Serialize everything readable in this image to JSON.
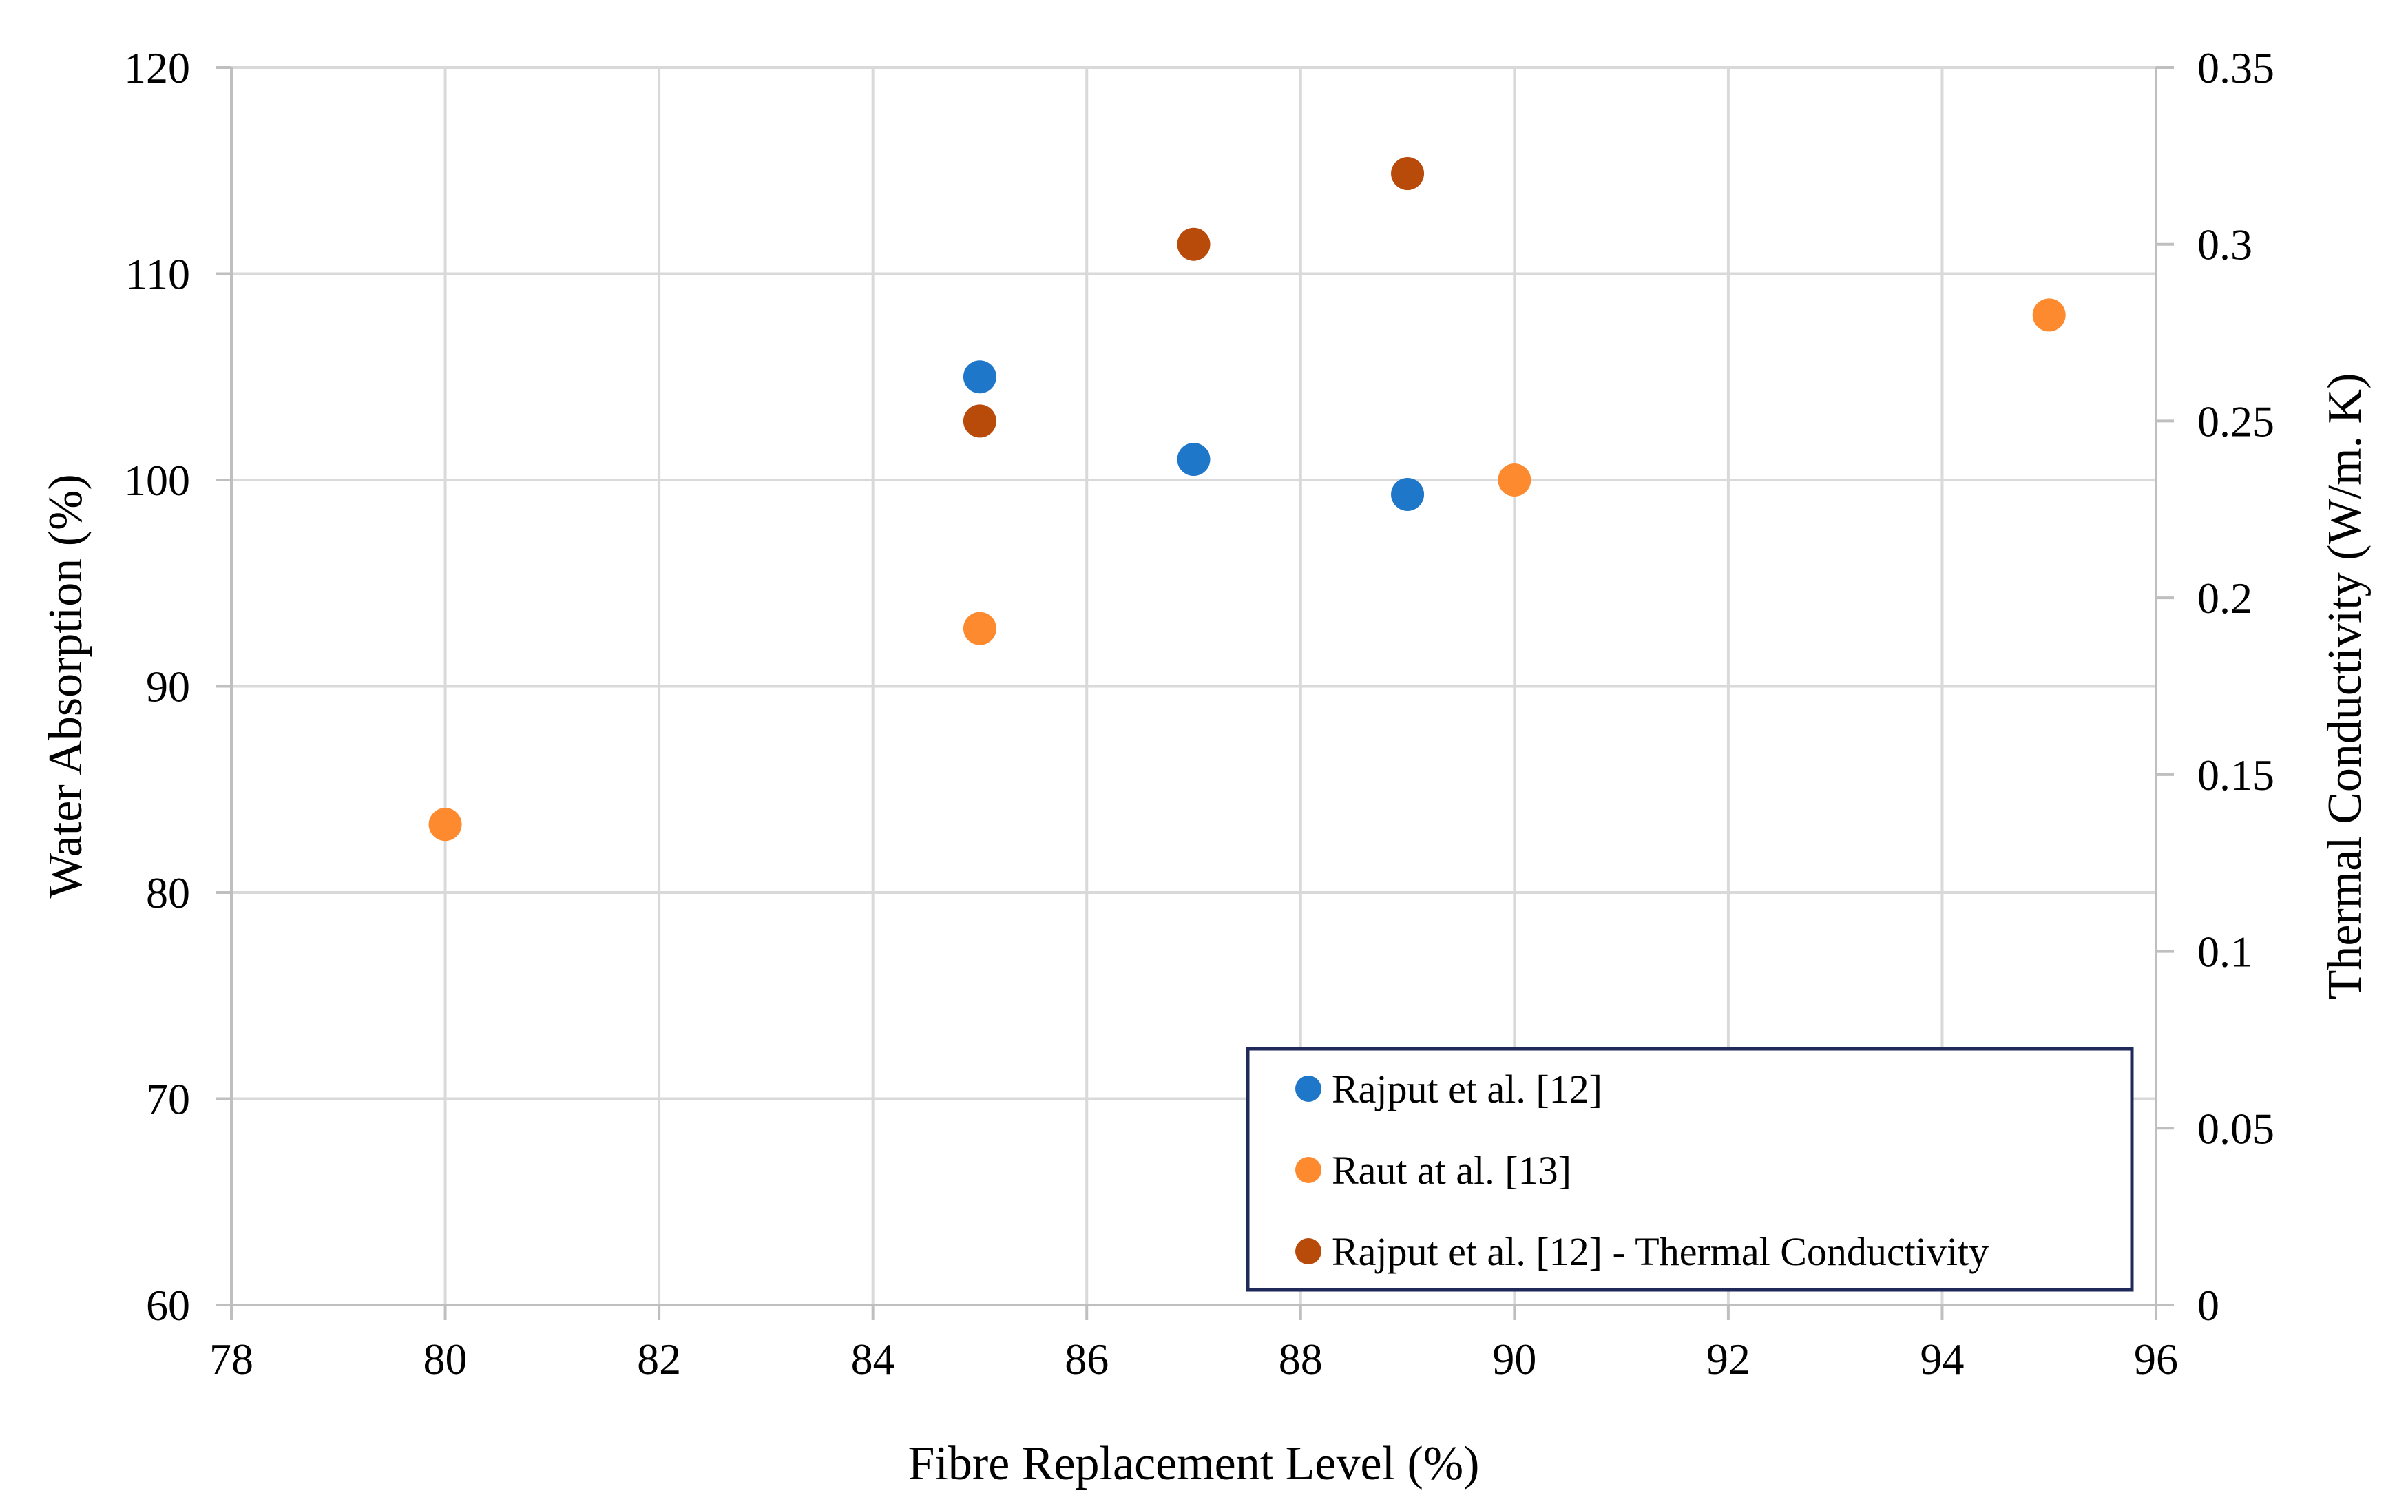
{
  "chart_data": {
    "type": "scatter",
    "x_axis": {
      "label": "Fibre Replacement Level (%)",
      "range": [
        78,
        96
      ],
      "ticks": [
        "78",
        "80",
        "82",
        "84",
        "86",
        "88",
        "90",
        "92",
        "94",
        "96"
      ],
      "gridlines": true
    },
    "y_axis_left": {
      "label": "Water Absorption (%)",
      "range": [
        60,
        120
      ],
      "ticks": [
        "60",
        "70",
        "80",
        "90",
        "100",
        "110",
        "120"
      ],
      "gridlines": true
    },
    "y_axis_right": {
      "label": "Thermal Conductivity (W/m. K)",
      "range": [
        0,
        0.35
      ],
      "ticks": [
        "0",
        "0.05",
        "0.1",
        "0.15",
        "0.2",
        "0.25",
        "0.3",
        "0.35"
      ]
    },
    "legend_position": "bottom-right",
    "series": [
      {
        "name": "Rajput et al. [12]",
        "axis": "left",
        "color": "#1f77c9",
        "points": [
          {
            "x": 85,
            "y": 105
          },
          {
            "x": 87,
            "y": 101
          },
          {
            "x": 89,
            "y": 99.3
          }
        ]
      },
      {
        "name": "Raut at al. [13]",
        "axis": "left",
        "color": "#fd8a2f",
        "points": [
          {
            "x": 80,
            "y": 83.3
          },
          {
            "x": 85,
            "y": 92.8
          },
          {
            "x": 90,
            "y": 100
          },
          {
            "x": 95,
            "y": 108
          }
        ]
      },
      {
        "name": "Rajput et al. [12] - Thermal Conductivity",
        "axis": "right",
        "color": "#b84a0a",
        "points": [
          {
            "x": 85,
            "y": 0.25
          },
          {
            "x": 87,
            "y": 0.3
          },
          {
            "x": 89,
            "y": 0.32
          }
        ]
      }
    ]
  }
}
